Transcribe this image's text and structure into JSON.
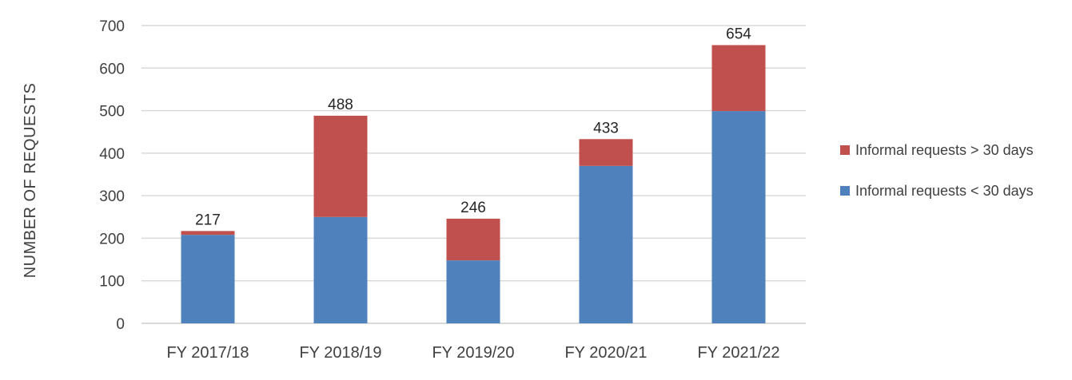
{
  "chart_data": {
    "type": "bar",
    "stacked": true,
    "categories": [
      "FY 2017/18",
      "FY 2018/19",
      "FY 2019/20",
      "FY 2020/21",
      "FY 2021/22"
    ],
    "series": [
      {
        "name": "Informal requests < 30 days",
        "color": "#4f81bd",
        "values": [
          208,
          250,
          148,
          370,
          499
        ]
      },
      {
        "name": "Informal requests > 30 days",
        "color": "#c0504d",
        "values": [
          9,
          238,
          98,
          63,
          155
        ]
      }
    ],
    "totals": [
      217,
      488,
      246,
      433,
      654
    ],
    "ylabel": "NUMBER OF REQUESTS",
    "ylim": [
      0,
      700
    ],
    "yticks": [
      0,
      100,
      200,
      300,
      400,
      500,
      600,
      700
    ],
    "grid": true,
    "legend": {
      "position": "right",
      "items": [
        "Informal requests > 30 days",
        "Informal requests < 30 days"
      ]
    },
    "gridline_color": "#d9d9d9"
  }
}
